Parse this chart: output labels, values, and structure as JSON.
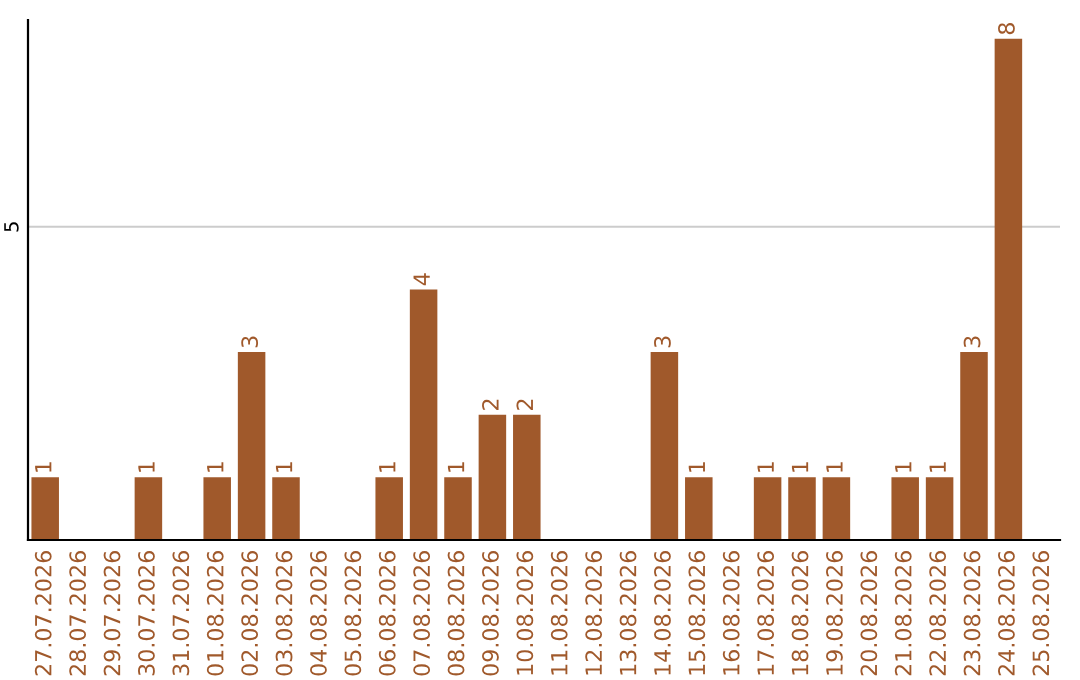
{
  "chart_data": {
    "type": "bar",
    "categories": [
      "27.07.2026",
      "28.07.2026",
      "29.07.2026",
      "30.07.2026",
      "31.07.2026",
      "01.08.2026",
      "02.08.2026",
      "03.08.2026",
      "04.08.2026",
      "05.08.2026",
      "06.08.2026",
      "07.08.2026",
      "08.08.2026",
      "09.08.2026",
      "10.08.2026",
      "11.08.2026",
      "12.08.2026",
      "13.08.2026",
      "14.08.2026",
      "15.08.2026",
      "16.08.2026",
      "17.08.2026",
      "18.08.2026",
      "19.08.2026",
      "20.08.2026",
      "21.08.2026",
      "22.08.2026",
      "23.08.2026",
      "24.08.2026",
      "25.08.2026"
    ],
    "values": [
      1,
      0,
      0,
      1,
      0,
      1,
      3,
      1,
      0,
      0,
      1,
      4,
      1,
      2,
      2,
      0,
      0,
      0,
      3,
      1,
      0,
      1,
      1,
      1,
      0,
      1,
      1,
      3,
      8,
      0
    ],
    "value_labels": [
      "1",
      null,
      null,
      "1",
      null,
      "1",
      "3",
      "1",
      null,
      null,
      "1",
      "4",
      "1",
      "2",
      "2",
      null,
      null,
      null,
      "3",
      "1",
      null,
      "1",
      "1",
      "1",
      null,
      "1",
      "1",
      "3",
      "8",
      null
    ],
    "color": "#a0592b",
    "ylim": [
      0,
      8.3
    ],
    "yticks": [
      5
    ],
    "grid": "y",
    "legend": false
  }
}
